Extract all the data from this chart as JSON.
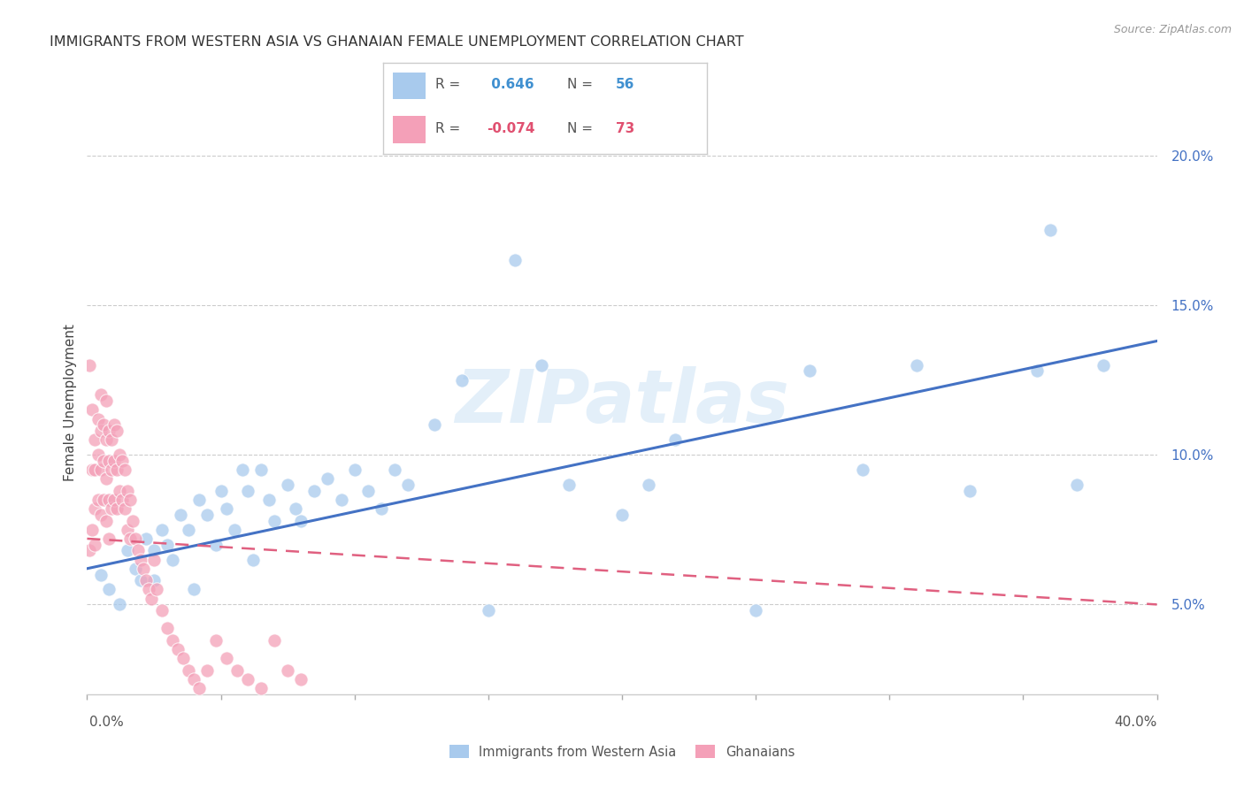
{
  "title": "IMMIGRANTS FROM WESTERN ASIA VS GHANAIAN FEMALE UNEMPLOYMENT CORRELATION CHART",
  "source": "Source: ZipAtlas.com",
  "ylabel": "Female Unemployment",
  "xlim": [
    0,
    0.4
  ],
  "ylim": [
    0.02,
    0.215
  ],
  "yticks": [
    0.05,
    0.1,
    0.15,
    0.2
  ],
  "ytick_labels": [
    "5.0%",
    "10.0%",
    "15.0%",
    "20.0%"
  ],
  "blue_R": 0.646,
  "blue_N": 56,
  "pink_R": -0.074,
  "pink_N": 73,
  "blue_color": "#a8caed",
  "pink_color": "#f4a0b8",
  "blue_line_color": "#4472c4",
  "pink_line_color": "#e06080",
  "legend_blue_label": "Immigrants from Western Asia",
  "legend_pink_label": "Ghanaians",
  "watermark": "ZIPatlas",
  "blue_x": [
    0.005,
    0.008,
    0.012,
    0.015,
    0.018,
    0.02,
    0.022,
    0.025,
    0.025,
    0.028,
    0.03,
    0.032,
    0.035,
    0.038,
    0.04,
    0.042,
    0.045,
    0.048,
    0.05,
    0.052,
    0.055,
    0.058,
    0.06,
    0.062,
    0.065,
    0.068,
    0.07,
    0.075,
    0.078,
    0.08,
    0.085,
    0.09,
    0.095,
    0.1,
    0.105,
    0.11,
    0.115,
    0.12,
    0.13,
    0.14,
    0.15,
    0.16,
    0.17,
    0.18,
    0.2,
    0.21,
    0.22,
    0.25,
    0.27,
    0.29,
    0.31,
    0.33,
    0.355,
    0.36,
    0.37,
    0.38
  ],
  "blue_y": [
    0.06,
    0.055,
    0.05,
    0.068,
    0.062,
    0.058,
    0.072,
    0.068,
    0.058,
    0.075,
    0.07,
    0.065,
    0.08,
    0.075,
    0.055,
    0.085,
    0.08,
    0.07,
    0.088,
    0.082,
    0.075,
    0.095,
    0.088,
    0.065,
    0.095,
    0.085,
    0.078,
    0.09,
    0.082,
    0.078,
    0.088,
    0.092,
    0.085,
    0.095,
    0.088,
    0.082,
    0.095,
    0.09,
    0.11,
    0.125,
    0.048,
    0.165,
    0.13,
    0.09,
    0.08,
    0.09,
    0.105,
    0.048,
    0.128,
    0.095,
    0.13,
    0.088,
    0.128,
    0.175,
    0.09,
    0.13
  ],
  "pink_x": [
    0.001,
    0.001,
    0.002,
    0.002,
    0.002,
    0.003,
    0.003,
    0.003,
    0.003,
    0.004,
    0.004,
    0.004,
    0.005,
    0.005,
    0.005,
    0.005,
    0.006,
    0.006,
    0.006,
    0.007,
    0.007,
    0.007,
    0.007,
    0.008,
    0.008,
    0.008,
    0.008,
    0.009,
    0.009,
    0.009,
    0.01,
    0.01,
    0.01,
    0.011,
    0.011,
    0.011,
    0.012,
    0.012,
    0.013,
    0.013,
    0.014,
    0.014,
    0.015,
    0.015,
    0.016,
    0.016,
    0.017,
    0.018,
    0.019,
    0.02,
    0.021,
    0.022,
    0.023,
    0.024,
    0.025,
    0.026,
    0.028,
    0.03,
    0.032,
    0.034,
    0.036,
    0.038,
    0.04,
    0.042,
    0.045,
    0.048,
    0.052,
    0.056,
    0.06,
    0.065,
    0.07,
    0.075,
    0.08
  ],
  "pink_y": [
    0.068,
    0.13,
    0.075,
    0.115,
    0.095,
    0.105,
    0.095,
    0.082,
    0.07,
    0.112,
    0.1,
    0.085,
    0.12,
    0.108,
    0.095,
    0.08,
    0.11,
    0.098,
    0.085,
    0.118,
    0.105,
    0.092,
    0.078,
    0.108,
    0.098,
    0.085,
    0.072,
    0.105,
    0.095,
    0.082,
    0.11,
    0.098,
    0.085,
    0.108,
    0.095,
    0.082,
    0.1,
    0.088,
    0.098,
    0.085,
    0.095,
    0.082,
    0.088,
    0.075,
    0.085,
    0.072,
    0.078,
    0.072,
    0.068,
    0.065,
    0.062,
    0.058,
    0.055,
    0.052,
    0.065,
    0.055,
    0.048,
    0.042,
    0.038,
    0.035,
    0.032,
    0.028,
    0.025,
    0.022,
    0.028,
    0.038,
    0.032,
    0.028,
    0.025,
    0.022,
    0.038,
    0.028,
    0.025
  ]
}
